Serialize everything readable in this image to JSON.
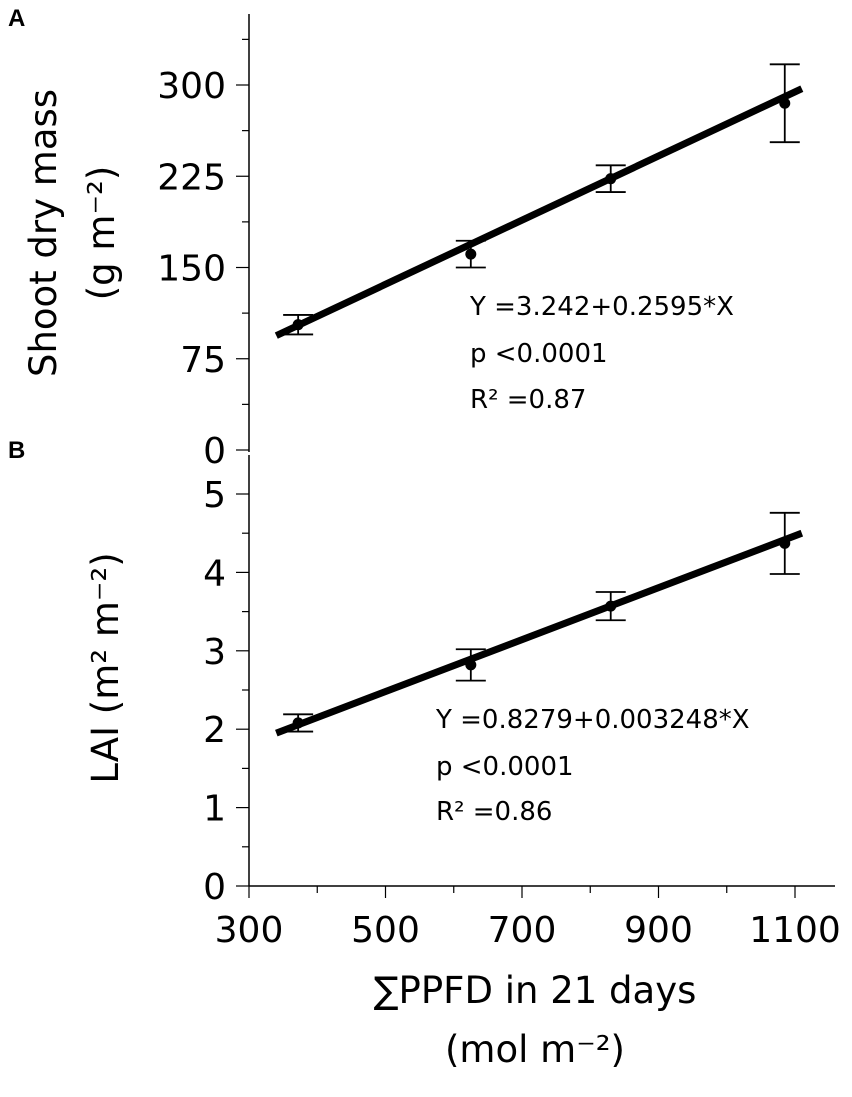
{
  "chart_data": [
    {
      "panel": "A",
      "type": "scatter",
      "ylabel_lines": [
        "Shoot dry mass",
        "(g m⁻²)"
      ],
      "ylim": [
        0,
        345
      ],
      "yticks": [
        0,
        75,
        150,
        225,
        300
      ],
      "xlim": [
        300,
        1140
      ],
      "points": [
        {
          "x": 372,
          "y": 103,
          "err": 8
        },
        {
          "x": 625,
          "y": 161,
          "err": 11
        },
        {
          "x": 830,
          "y": 223,
          "err": 11
        },
        {
          "x": 1085,
          "y": 285,
          "err": 32
        }
      ],
      "fit": {
        "x_range": [
          340,
          1110
        ],
        "y_start": 94,
        "y_end": 297
      },
      "annotation": [
        "Y =3.242+0.2595*X",
        "p <0.0001",
        "R² =0.87"
      ]
    },
    {
      "panel": "B",
      "type": "scatter",
      "ylabel": "LAI (m² m⁻²)",
      "ylim": [
        0,
        5.1
      ],
      "yticks": [
        0,
        1,
        2,
        3,
        4,
        5
      ],
      "xlim": [
        300,
        1140
      ],
      "xticks": [
        300,
        500,
        700,
        900,
        1100
      ],
      "xlabel_lines": [
        "∑PPFD in 21 days",
        "(mol m⁻²)"
      ],
      "points": [
        {
          "x": 372,
          "y": 2.08,
          "err": 0.11
        },
        {
          "x": 625,
          "y": 2.82,
          "err": 0.2
        },
        {
          "x": 830,
          "y": 3.57,
          "err": 0.18
        },
        {
          "x": 1085,
          "y": 4.37,
          "err": 0.39
        }
      ],
      "fit": {
        "x_range": [
          340,
          1110
        ],
        "y_start": 1.95,
        "y_end": 4.5
      },
      "annotation": [
        "Y =0.8279+0.003248*X",
        "p <0.0001",
        "R² =0.86"
      ]
    }
  ]
}
